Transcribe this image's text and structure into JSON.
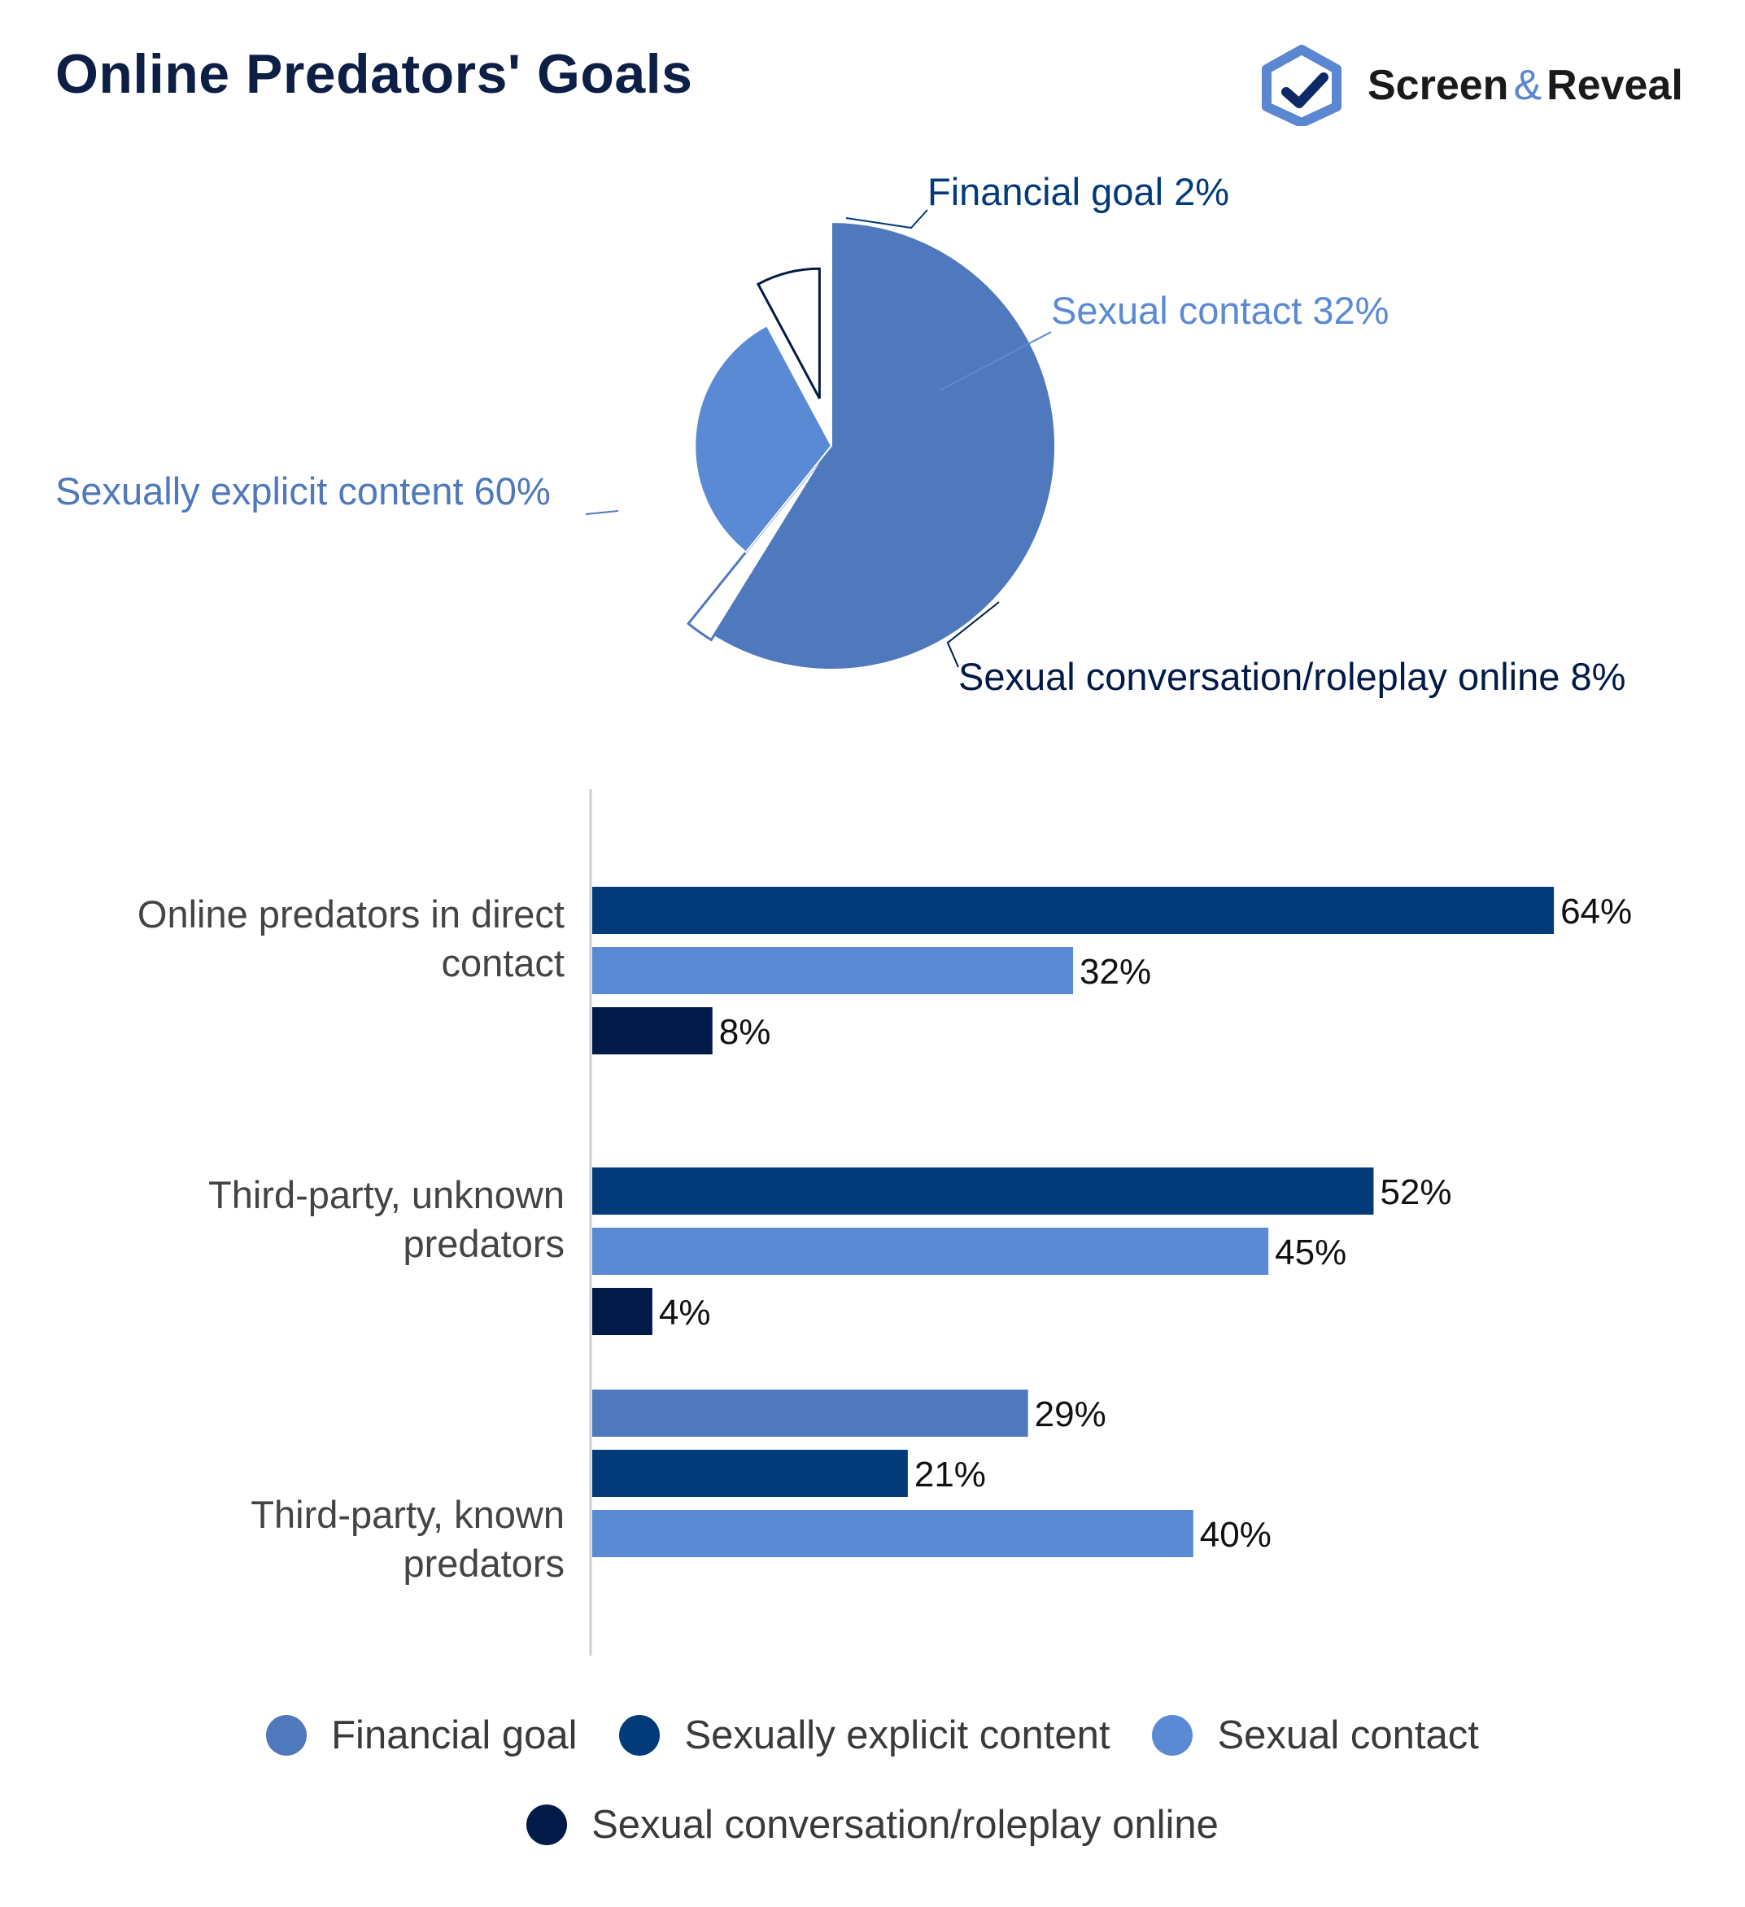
{
  "title": "Online Predators' Goals",
  "brand": {
    "name_left": "Screen",
    "ampersand": "&",
    "name_right": "Reveal"
  },
  "colors": {
    "financial": "#4f78bd",
    "explicit": "#023a7a",
    "contact": "#5b8ad5",
    "conversation": "#021a48"
  },
  "chart_data": [
    {
      "type": "pie",
      "slices": [
        {
          "name": "Sexually explicit content",
          "value": 60,
          "label": "Sexually explicit content 60%",
          "color": "#4f78bd"
        },
        {
          "name": "Financial goal",
          "value": 2,
          "label": "Financial goal 2%",
          "color": "#ffffff"
        },
        {
          "name": "Sexual contact",
          "value": 32,
          "label": "Sexual contact 32%",
          "color": "#5b8ad5"
        },
        {
          "name": "Sexual conversation/roleplay online",
          "value": 8,
          "label": "Sexual conversation/roleplay online 8%",
          "color": "#ffffff"
        }
      ]
    },
    {
      "type": "bar",
      "orientation": "horizontal",
      "categories": [
        [
          "Online predators in direct",
          "contact"
        ],
        [
          "Third-party, unknown",
          "predators"
        ],
        [
          "Third-party, known",
          "predators"
        ]
      ],
      "groups": [
        {
          "bars": [
            {
              "series": "Sexually explicit content",
              "value": 64,
              "label": "64%"
            },
            {
              "series": "Sexual contact",
              "value": 32,
              "label": "32%"
            },
            {
              "series": "Sexual conversation/roleplay online",
              "value": 8,
              "label": "8%"
            }
          ]
        },
        {
          "bars": [
            {
              "series": "Sexually explicit content",
              "value": 52,
              "label": "52%"
            },
            {
              "series": "Sexual contact",
              "value": 45,
              "label": "45%"
            },
            {
              "series": "Sexual conversation/roleplay online",
              "value": 4,
              "label": "4%"
            }
          ]
        },
        {
          "bars": [
            {
              "series": "Financial goal",
              "value": 29,
              "label": "29%"
            },
            {
              "series": "Sexually explicit content",
              "value": 21,
              "label": "21%"
            },
            {
              "series": "Sexual contact",
              "value": 40,
              "label": "40%"
            }
          ]
        }
      ],
      "series": [
        {
          "name": "Financial goal",
          "color": "#4f78bd"
        },
        {
          "name": "Sexually explicit content",
          "color": "#023a7a"
        },
        {
          "name": "Sexual contact",
          "color": "#5b8ad5"
        },
        {
          "name": "Sexual conversation/roleplay online",
          "color": "#021a48"
        }
      ],
      "xlim": [
        0,
        100
      ],
      "grid": false,
      "legend_position": "bottom"
    }
  ]
}
